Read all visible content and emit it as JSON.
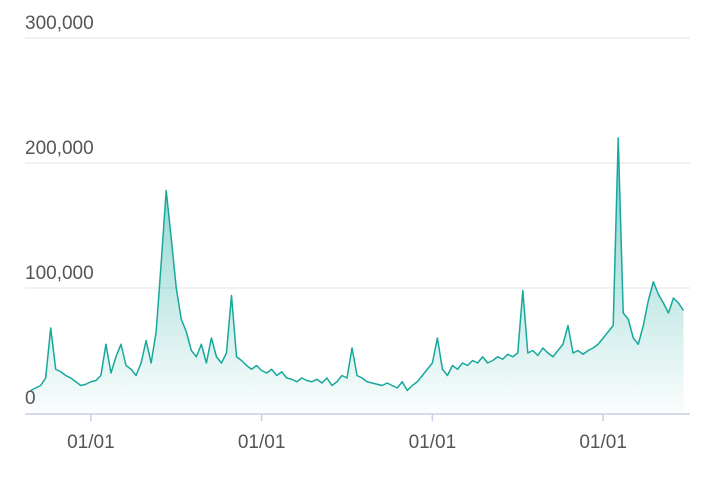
{
  "chart_data": {
    "type": "area",
    "categories": [
      null,
      null,
      null,
      null,
      null,
      null,
      null,
      null,
      null,
      null,
      null,
      null,
      "01/01",
      null,
      null,
      null,
      null,
      null,
      null,
      null,
      null,
      null,
      null,
      null,
      null,
      null,
      null,
      null,
      null,
      null,
      null,
      null,
      null,
      null,
      null,
      null,
      null,
      null,
      null,
      null,
      null,
      null,
      null,
      null,
      null,
      null,
      "01/01",
      null,
      null,
      null,
      null,
      null,
      null,
      null,
      null,
      null,
      null,
      null,
      null,
      null,
      null,
      null,
      null,
      null,
      null,
      null,
      null,
      null,
      null,
      null,
      null,
      null,
      null,
      null,
      null,
      null,
      null,
      null,
      null,
      null,
      "01/01",
      null,
      null,
      null,
      null,
      null,
      null,
      null,
      null,
      null,
      null,
      null,
      null,
      null,
      null,
      null,
      null,
      null,
      null,
      null,
      null,
      null,
      null,
      null,
      null,
      null,
      null,
      null,
      null,
      null,
      null,
      null,
      null,
      null,
      "01/01",
      null,
      null,
      null,
      null,
      null,
      null,
      null,
      null,
      null,
      null,
      null,
      null,
      null,
      null,
      null,
      null
    ],
    "values": [
      18000,
      20000,
      22000,
      28000,
      68000,
      35000,
      33000,
      30000,
      28000,
      25000,
      22000,
      23000,
      25000,
      26000,
      30000,
      55000,
      32000,
      45000,
      55000,
      38000,
      35000,
      30000,
      40000,
      58000,
      40000,
      65000,
      120000,
      178000,
      140000,
      100000,
      75000,
      65000,
      50000,
      45000,
      55000,
      40000,
      60000,
      45000,
      40000,
      48000,
      94000,
      45000,
      42000,
      38000,
      35000,
      38000,
      34000,
      32000,
      35000,
      30000,
      33000,
      28000,
      27000,
      25000,
      28000,
      26000,
      25000,
      27000,
      24000,
      28000,
      22000,
      25000,
      30000,
      28000,
      52000,
      30000,
      28000,
      25000,
      24000,
      23000,
      22000,
      24000,
      22000,
      20000,
      25000,
      18000,
      22000,
      25000,
      30000,
      35000,
      40000,
      60000,
      35000,
      30000,
      38000,
      35000,
      40000,
      38000,
      42000,
      40000,
      45000,
      40000,
      42000,
      45000,
      43000,
      47000,
      45000,
      48000,
      98000,
      48000,
      50000,
      46000,
      52000,
      48000,
      45000,
      50000,
      55000,
      70000,
      48000,
      50000,
      47000,
      50000,
      52000,
      55000,
      60000,
      65000,
      70000,
      220000,
      80000,
      75000,
      60000,
      55000,
      70000,
      90000,
      105000,
      95000,
      88000,
      80000,
      92000,
      88000,
      82000
    ],
    "color": "#17a89c",
    "ylim": [
      0,
      300000
    ],
    "yticks": [
      0,
      {
        "value": 100000,
        "label": "100,000"
      },
      {
        "value": 200000,
        "label": "200,000"
      },
      {
        "value": 300000,
        "label": "300,000"
      }
    ],
    "grid": true
  }
}
